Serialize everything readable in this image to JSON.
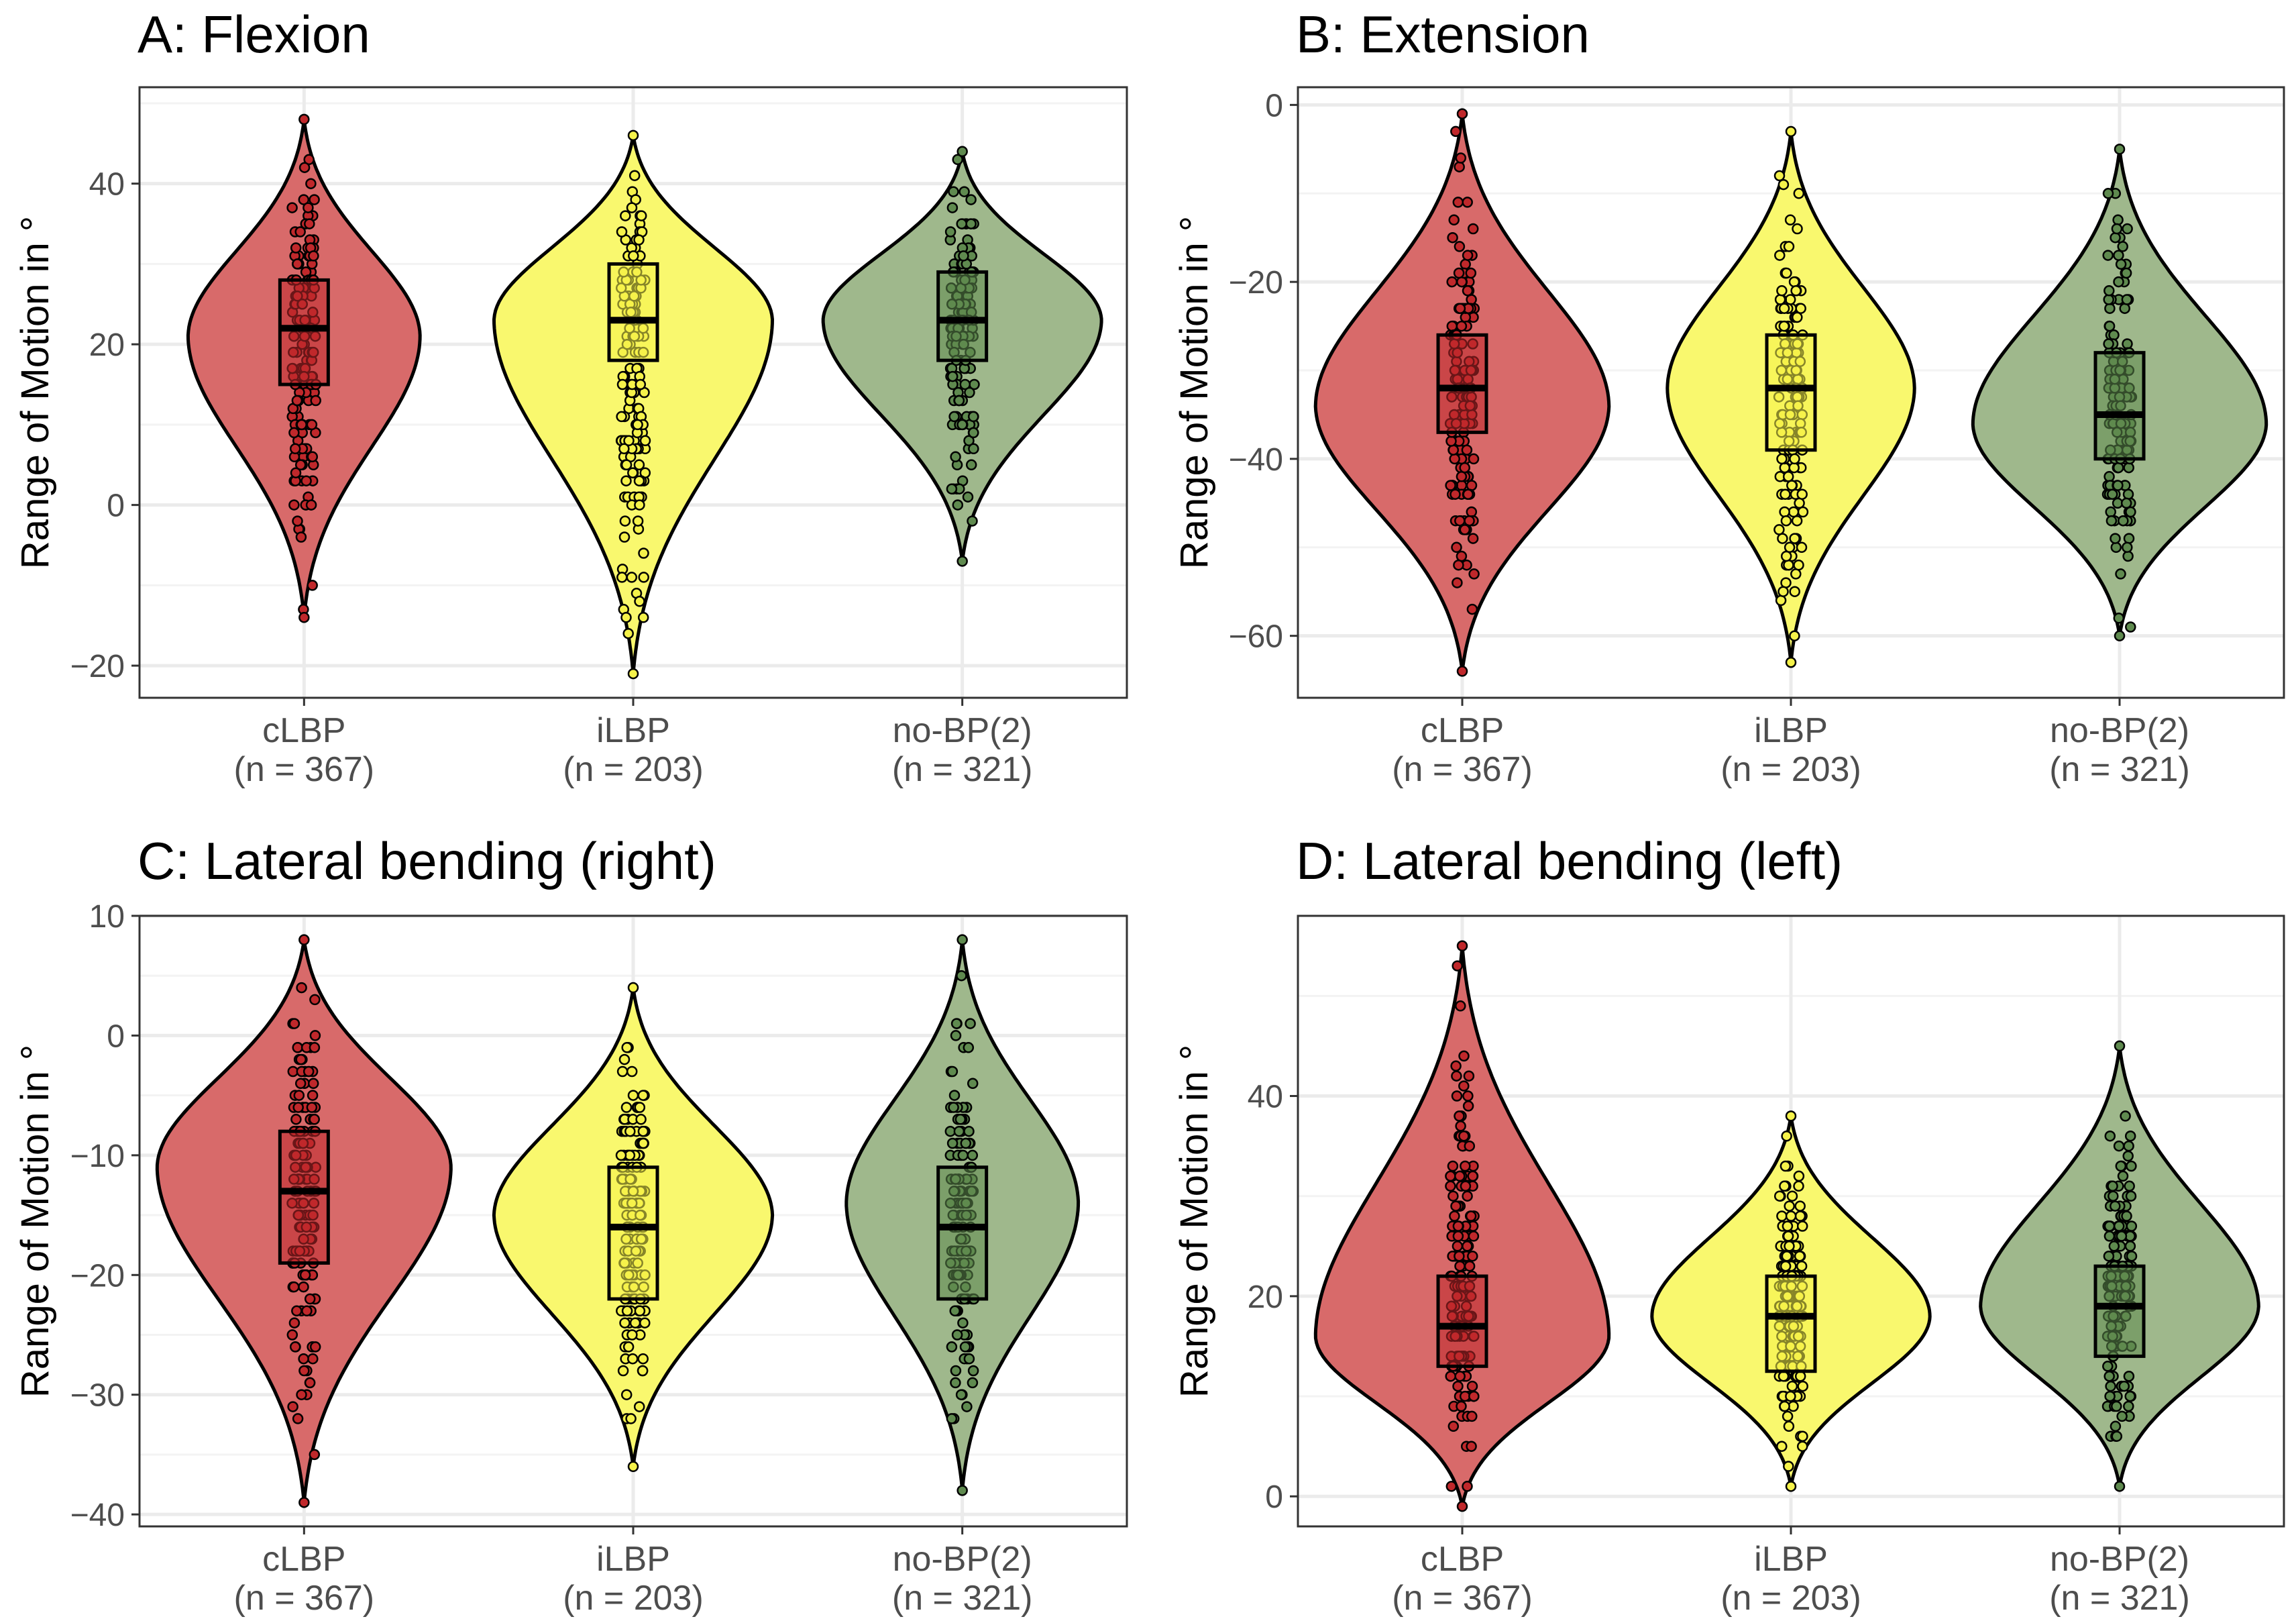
{
  "chart_data": [
    {
      "type": "violin",
      "panel": "A",
      "title": "A: Flexion",
      "ylabel": "Range of Motion in °",
      "ylim": [
        -24,
        52
      ],
      "yticks": [
        -20,
        0,
        20,
        40
      ],
      "groups": [
        {
          "name": "cLBP",
          "n_label": "(n = 367)",
          "color": "#d86a6a",
          "point_color": "#c0282b",
          "min": -14,
          "q1": 15,
          "median": 22,
          "q3": 28,
          "max": 48,
          "mode": 21,
          "width": 0.75
        },
        {
          "name": "iLBP",
          "n_label": "(n = 203)",
          "color": "#f9f86e",
          "point_color": "#f5f24a",
          "min": -21,
          "q1": 18,
          "median": 23,
          "q3": 30,
          "max": 46,
          "mode": 23,
          "width": 0.9
        },
        {
          "name": "no-BP(2)",
          "n_label": "(n = 321)",
          "color": "#9fb88c",
          "point_color": "#5f8a4f",
          "min": -7,
          "q1": 18,
          "median": 23,
          "q3": 29,
          "max": 44,
          "mode": 23,
          "width": 0.9
        }
      ]
    },
    {
      "type": "violin",
      "panel": "B",
      "title": "B: Extension",
      "ylabel": "Range of Motion in °",
      "ylim": [
        -67,
        2
      ],
      "yticks": [
        -60,
        -40,
        -20,
        0
      ],
      "groups": [
        {
          "name": "cLBP",
          "n_label": "(n = 367)",
          "color": "#d86a6a",
          "point_color": "#c0282b",
          "min": -64,
          "q1": -37,
          "median": -32,
          "q3": -26,
          "max": -1,
          "mode": -34,
          "width": 0.95
        },
        {
          "name": "iLBP",
          "n_label": "(n = 203)",
          "color": "#f9f86e",
          "point_color": "#f5f24a",
          "min": -63,
          "q1": -39,
          "median": -32,
          "q3": -26,
          "max": -3,
          "mode": -32,
          "width": 0.8
        },
        {
          "name": "no-BP(2)",
          "n_label": "(n = 321)",
          "color": "#9fb88c",
          "point_color": "#5f8a4f",
          "min": -60,
          "q1": -40,
          "median": -35,
          "q3": -28,
          "max": -5,
          "mode": -36,
          "width": 0.95
        }
      ]
    },
    {
      "type": "violin",
      "panel": "C",
      "title": "C: Lateral bending (right)",
      "ylabel": "Range of Motion in °",
      "ylim": [
        -41,
        10
      ],
      "yticks": [
        -40,
        -30,
        -20,
        -10,
        0,
        10
      ],
      "groups": [
        {
          "name": "cLBP",
          "n_label": "(n = 367)",
          "color": "#d86a6a",
          "point_color": "#c0282b",
          "min": -39,
          "q1": -19,
          "median": -13,
          "q3": -8,
          "max": 8,
          "mode": -11,
          "width": 0.95
        },
        {
          "name": "iLBP",
          "n_label": "(n = 203)",
          "color": "#f9f86e",
          "point_color": "#f5f24a",
          "min": -36,
          "q1": -22,
          "median": -16,
          "q3": -11,
          "max": 4,
          "mode": -15,
          "width": 0.9
        },
        {
          "name": "no-BP(2)",
          "n_label": "(n = 321)",
          "color": "#9fb88c",
          "point_color": "#5f8a4f",
          "min": -38,
          "q1": -22,
          "median": -16,
          "q3": -11,
          "max": 8,
          "mode": -14,
          "width": 0.75
        }
      ]
    },
    {
      "type": "violin",
      "panel": "D",
      "title": "D: Lateral bending (left)",
      "ylabel": "Range of Motion in °",
      "ylim": [
        -3,
        58
      ],
      "yticks": [
        0,
        20,
        40
      ],
      "groups": [
        {
          "name": "cLBP",
          "n_label": "(n = 367)",
          "color": "#d86a6a",
          "point_color": "#c0282b",
          "min": -1,
          "q1": 13,
          "median": 17,
          "q3": 22,
          "max": 55,
          "mode": 16,
          "width": 0.95
        },
        {
          "name": "iLBP",
          "n_label": "(n = 203)",
          "color": "#f9f86e",
          "point_color": "#f5f24a",
          "min": 1,
          "q1": 12.5,
          "median": 18,
          "q3": 22,
          "max": 38,
          "mode": 18,
          "width": 0.9
        },
        {
          "name": "no-BP(2)",
          "n_label": "(n = 321)",
          "color": "#9fb88c",
          "point_color": "#5f8a4f",
          "min": 1,
          "q1": 14,
          "median": 19,
          "q3": 23,
          "max": 45,
          "mode": 19,
          "width": 0.9
        }
      ]
    }
  ]
}
